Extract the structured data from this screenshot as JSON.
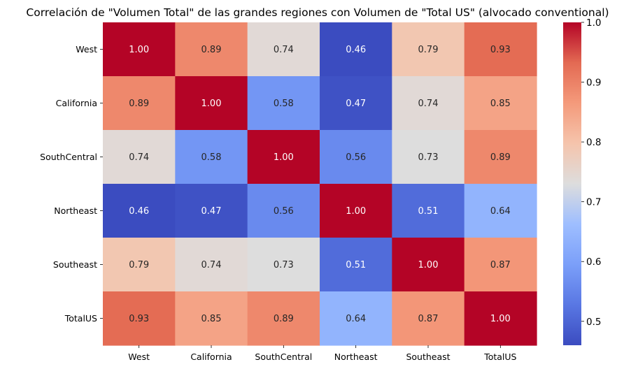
{
  "chart_data": {
    "type": "heatmap",
    "title": "Correlación de \"Volumen Total\" de las grandes regiones con Volumen de \"Total US\" (alvocado conventional)",
    "row_labels": [
      "West",
      "California",
      "SouthCentral",
      "Northeast",
      "Southeast",
      "TotalUS"
    ],
    "col_labels": [
      "West",
      "California",
      "SouthCentral",
      "Northeast",
      "Southeast",
      "TotalUS"
    ],
    "values": [
      [
        1.0,
        0.89,
        0.74,
        0.46,
        0.79,
        0.93
      ],
      [
        0.89,
        1.0,
        0.58,
        0.47,
        0.74,
        0.85
      ],
      [
        0.74,
        0.58,
        1.0,
        0.56,
        0.73,
        0.89
      ],
      [
        0.46,
        0.47,
        0.56,
        1.0,
        0.51,
        0.64
      ],
      [
        0.79,
        0.74,
        0.73,
        0.51,
        1.0,
        0.87
      ],
      [
        0.93,
        0.85,
        0.89,
        0.64,
        0.87,
        1.0
      ]
    ],
    "value_labels": [
      [
        "1.00",
        "0.89",
        "0.74",
        "0.46",
        "0.79",
        "0.93"
      ],
      [
        "0.89",
        "1.00",
        "0.58",
        "0.47",
        "0.74",
        "0.85"
      ],
      [
        "0.74",
        "0.58",
        "1.00",
        "0.56",
        "0.73",
        "0.89"
      ],
      [
        "0.46",
        "0.47",
        "0.56",
        "1.00",
        "0.51",
        "0.64"
      ],
      [
        "0.79",
        "0.74",
        "0.73",
        "0.51",
        "1.00",
        "0.87"
      ],
      [
        "0.93",
        "0.85",
        "0.89",
        "0.64",
        "0.87",
        "1.00"
      ]
    ],
    "colormap": "coolwarm",
    "color_range": [
      0.46,
      1.0
    ],
    "colorbar_ticks": [
      0.5,
      0.6,
      0.7,
      0.8,
      0.9,
      1.0
    ],
    "colorbar_tick_labels": [
      "0.5",
      "0.6",
      "0.7",
      "0.8",
      "0.9",
      "1.0"
    ],
    "legend_placement": "right",
    "grid": false
  }
}
